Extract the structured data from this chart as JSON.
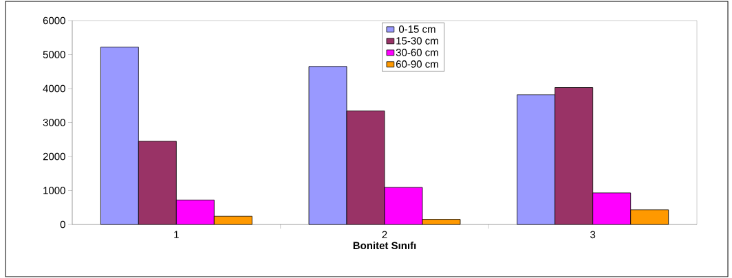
{
  "chart_data": {
    "type": "bar",
    "xlabel": "Bonitet Sınıfı",
    "categories": [
      "1",
      "2",
      "3"
    ],
    "series": [
      {
        "name": "0-15 cm",
        "color": "#9999ff",
        "values": [
          5220,
          4650,
          3820
        ]
      },
      {
        "name": "15-30 cm",
        "color": "#993366",
        "values": [
          2450,
          3340,
          4030
        ]
      },
      {
        "name": "30-60 cm",
        "color": "#ff00ff",
        "values": [
          720,
          1090,
          930
        ]
      },
      {
        "name": "60-90 cm",
        "color": "#ff9900",
        "values": [
          240,
          150,
          430
        ]
      }
    ],
    "ylim": [
      0,
      6000
    ],
    "yticks": [
      0,
      1000,
      2000,
      3000,
      4000,
      5000,
      6000
    ],
    "grid": false,
    "legend": "top"
  }
}
